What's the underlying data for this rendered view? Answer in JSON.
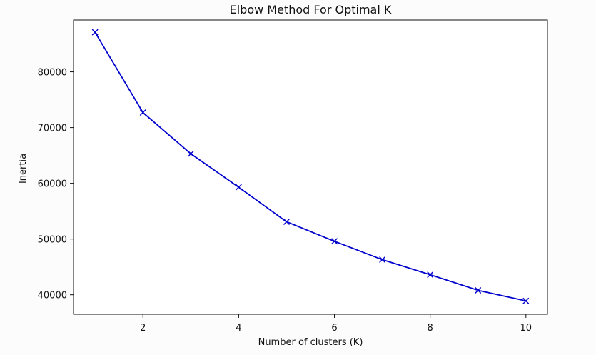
{
  "chart_data": {
    "type": "line",
    "title": "Elbow Method For Optimal K",
    "xlabel": "Number of clusters (K)",
    "ylabel": "Inertia",
    "x": [
      1,
      2,
      3,
      4,
      5,
      6,
      7,
      8,
      9,
      10
    ],
    "series": [
      {
        "values": [
          87100,
          72700,
          65300,
          59300,
          53100,
          49600,
          46300,
          43600,
          40800,
          38900
        ],
        "color": "#0000cc",
        "marker": "x-marker"
      }
    ],
    "xlim": [
      0.55,
      10.45
    ],
    "ylim": [
      36500,
      89300
    ],
    "xticks": [
      2,
      4,
      6,
      8,
      10
    ],
    "yticks": [
      40000,
      50000,
      60000,
      70000,
      80000
    ],
    "grid": false,
    "legend": "none"
  }
}
